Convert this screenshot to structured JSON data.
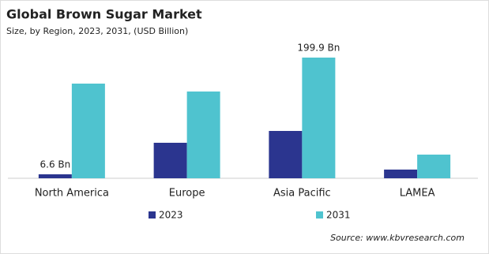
{
  "chart_data": {
    "type": "bar",
    "title": "Global Brown Sugar Market",
    "subtitle": "Size, by Region, 2023, 2031, (USD Billion)",
    "categories": [
      "North America",
      "Europe",
      "Asia Pacific",
      "LAMEA"
    ],
    "series": [
      {
        "name": "2023",
        "color": "#2b358f",
        "values": [
          6.6,
          58.8,
          78.4,
          14.4
        ],
        "value_labels": [
          "6.6 Bn",
          null,
          null,
          null
        ]
      },
      {
        "name": "2031",
        "color": "#4fc3cf",
        "values": [
          156.8,
          143.7,
          199.9,
          39.2
        ],
        "value_labels": [
          null,
          null,
          "199.9 Bn",
          null
        ]
      }
    ],
    "source": "Source: www.kbvresearch.com"
  }
}
